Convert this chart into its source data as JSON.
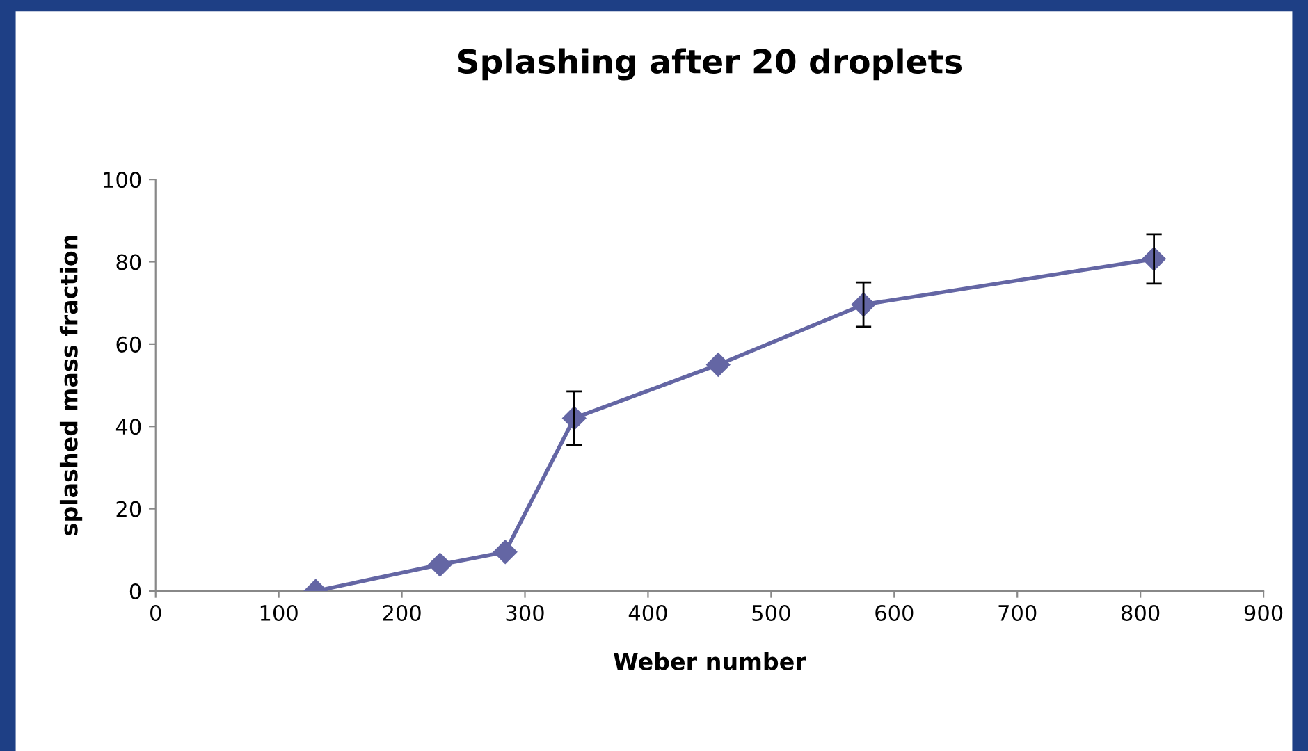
{
  "chart_data": {
    "type": "line",
    "title": "Splashing after 20 droplets",
    "xlabel": "Weber number",
    "ylabel": "splashed mass fraction",
    "x": [
      130,
      231,
      284,
      340,
      457,
      575,
      811
    ],
    "series": [
      {
        "color": "#6466a4",
        "values": [
          0,
          6.4,
          9.5,
          42,
          55,
          69.6,
          80.7
        ],
        "errors": [
          null,
          null,
          null,
          6.5,
          null,
          5.4,
          6
        ]
      }
    ],
    "xlim": [
      0,
      900
    ],
    "xticks": [
      0,
      100,
      200,
      300,
      400,
      500,
      600,
      700,
      800,
      900
    ],
    "ylim": [
      0,
      100
    ],
    "yticks": [
      0,
      20,
      40,
      60,
      80,
      100
    ],
    "grid": false,
    "marker": "diamond",
    "line_style": "solid"
  }
}
